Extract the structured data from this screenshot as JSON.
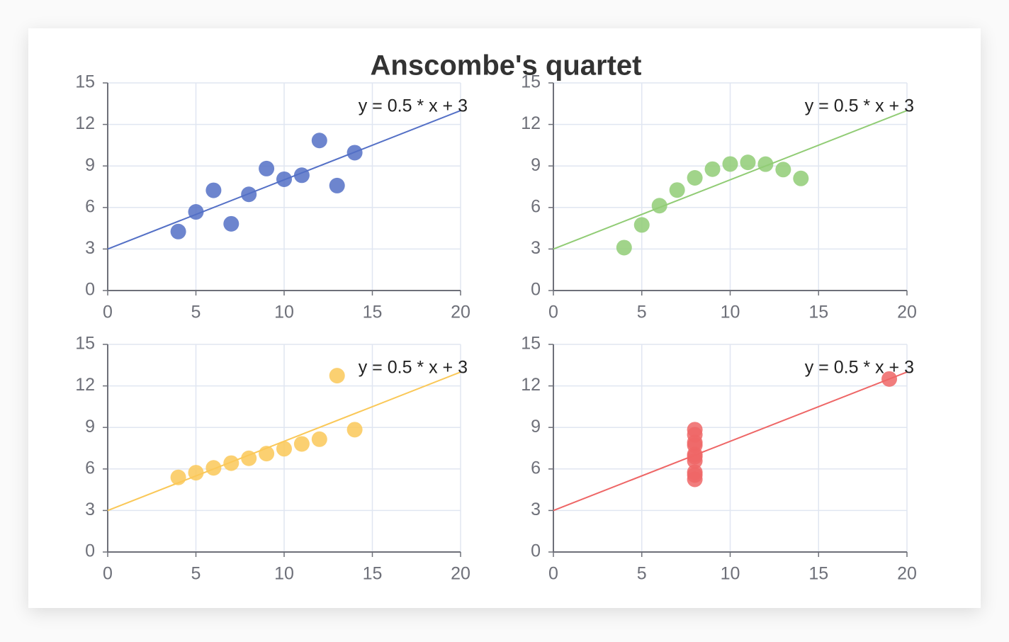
{
  "title": "Anscombe's quartet",
  "chart_data": [
    {
      "type": "scatter",
      "color": "#5470c6",
      "x": [
        10,
        8,
        13,
        9,
        11,
        14,
        6,
        4,
        12,
        7,
        5
      ],
      "values": [
        8.04,
        6.95,
        7.58,
        8.81,
        8.33,
        9.96,
        7.24,
        4.26,
        10.84,
        4.82,
        5.68
      ],
      "xlim": [
        0,
        20
      ],
      "xticks": [
        0,
        5,
        10,
        15,
        20
      ],
      "ylim": [
        0,
        15
      ],
      "yticks": [
        0,
        3,
        6,
        9,
        12,
        15
      ],
      "grid": true,
      "fit": {
        "label": "y = 0.5 * x + 3",
        "x": [
          0,
          20
        ],
        "values": [
          3,
          13
        ]
      }
    },
    {
      "type": "scatter",
      "color": "#91cc75",
      "x": [
        10,
        8,
        13,
        9,
        11,
        14,
        6,
        4,
        12,
        7,
        5
      ],
      "values": [
        9.14,
        8.14,
        8.74,
        8.77,
        9.26,
        8.1,
        6.13,
        3.1,
        9.13,
        7.26,
        4.74
      ],
      "xlim": [
        0,
        20
      ],
      "xticks": [
        0,
        5,
        10,
        15,
        20
      ],
      "ylim": [
        0,
        15
      ],
      "yticks": [
        0,
        3,
        6,
        9,
        12,
        15
      ],
      "grid": true,
      "fit": {
        "label": "y = 0.5 * x + 3",
        "x": [
          0,
          20
        ],
        "values": [
          3,
          13
        ]
      }
    },
    {
      "type": "scatter",
      "color": "#fac858",
      "x": [
        10,
        8,
        13,
        9,
        11,
        14,
        6,
        4,
        12,
        7,
        5
      ],
      "values": [
        7.46,
        6.77,
        12.74,
        7.11,
        7.81,
        8.84,
        6.08,
        5.39,
        8.15,
        6.42,
        5.73
      ],
      "xlim": [
        0,
        20
      ],
      "xticks": [
        0,
        5,
        10,
        15,
        20
      ],
      "ylim": [
        0,
        15
      ],
      "yticks": [
        0,
        3,
        6,
        9,
        12,
        15
      ],
      "grid": true,
      "fit": {
        "label": "y = 0.5 * x + 3",
        "x": [
          0,
          20
        ],
        "values": [
          3,
          13
        ]
      }
    },
    {
      "type": "scatter",
      "color": "#ee6666",
      "x": [
        8,
        8,
        8,
        8,
        8,
        8,
        8,
        19,
        8,
        8,
        8
      ],
      "values": [
        6.58,
        5.76,
        7.71,
        8.84,
        8.47,
        7.04,
        5.25,
        12.5,
        5.56,
        7.91,
        6.89
      ],
      "xlim": [
        0,
        20
      ],
      "xticks": [
        0,
        5,
        10,
        15,
        20
      ],
      "ylim": [
        0,
        15
      ],
      "yticks": [
        0,
        3,
        6,
        9,
        12,
        15
      ],
      "grid": true,
      "fit": {
        "label": "y = 0.5 * x + 3",
        "x": [
          0,
          20
        ],
        "values": [
          3,
          13
        ]
      }
    }
  ]
}
